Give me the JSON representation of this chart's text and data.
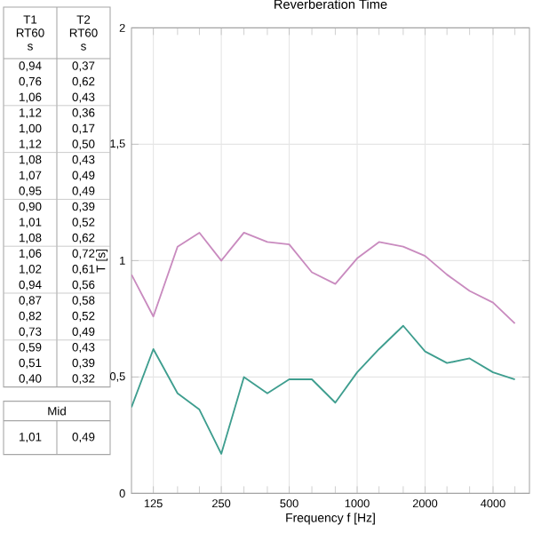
{
  "chart_data": {
    "type": "line",
    "title": "Reverberation Time",
    "xlabel": "Frequency f [Hz]",
    "ylabel": "T [s]",
    "x": [
      100,
      125,
      160,
      200,
      250,
      315,
      400,
      500,
      630,
      800,
      1000,
      1250,
      1600,
      2000,
      2500,
      3150,
      4000,
      5000
    ],
    "series": [
      {
        "color": "#c98bbf",
        "values": [
          0.94,
          0.76,
          1.06,
          1.12,
          1.0,
          1.12,
          1.08,
          1.07,
          0.95,
          0.9,
          1.01,
          1.08,
          1.06,
          1.02,
          0.94,
          0.87,
          0.82,
          0.73
        ]
      },
      {
        "color": "#3f9e8f",
        "values": [
          0.37,
          0.62,
          0.43,
          0.36,
          0.17,
          0.5,
          0.43,
          0.49,
          0.49,
          0.39,
          0.52,
          0.62,
          0.72,
          0.61,
          0.56,
          0.58,
          0.52,
          0.49
        ]
      }
    ],
    "log": "x",
    "xlim": [
      100,
      5800
    ],
    "xticks": [
      125,
      {
        "value": 160,
        "label": null
      },
      {
        "value": 200,
        "label": null
      },
      250,
      {
        "value": 315,
        "label": null
      },
      {
        "value": 400,
        "label": null
      },
      500,
      {
        "value": 630,
        "label": null
      },
      {
        "value": 800,
        "label": null
      },
      1000,
      {
        "value": 1250,
        "label": null
      },
      {
        "value": 1600,
        "label": null
      },
      2000,
      {
        "value": 2500,
        "label": null
      },
      {
        "value": 3150,
        "label": null
      },
      4000,
      {
        "value": 5000,
        "label": null
      }
    ],
    "ylim": [
      0,
      2
    ],
    "yticks": [
      0,
      {
        "value": 0.5,
        "label": "0,5"
      },
      1,
      {
        "value": 1.5,
        "label": "1,5"
      },
      2
    ],
    "grid": true,
    "annotations": [
      "T1 RT60 s",
      "T2 RT60 s",
      "0,94",
      "0,37",
      "0,76",
      "0,62",
      "1,06",
      "0,43",
      "1,12",
      "0,36",
      "1,00",
      "0,17",
      "1,12",
      "0,50",
      "1,08",
      "0,43",
      "1,07",
      "0,49",
      "0,95",
      "0,49",
      "0,90",
      "0,39",
      "1,01",
      "0,52",
      "1,08",
      "0,62",
      "1,06",
      "0,72",
      "1,02",
      "0,61",
      "0,94",
      "0,56",
      "0,87",
      "0,58",
      "0,82",
      "0,52",
      "0,73",
      "0,49",
      "0,59",
      "0,43",
      "0,51",
      "0,39",
      "0,40",
      "0,32",
      "Mid",
      "1,01",
      "0,49"
    ]
  }
}
